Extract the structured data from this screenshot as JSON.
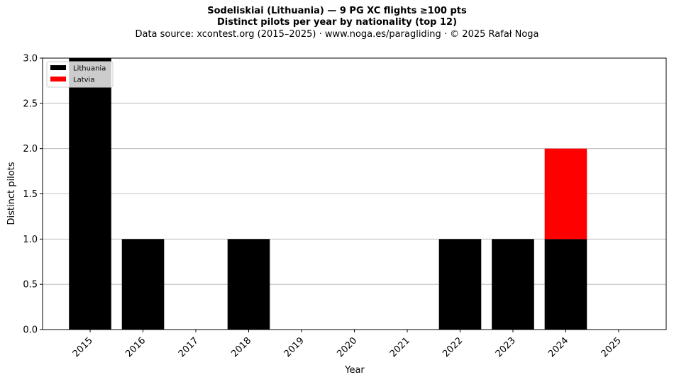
{
  "chart_data": {
    "type": "bar",
    "stacked": true,
    "title": "Sodeliskiai (Lithuania)  —  9 PG XC flights ≥100 pts",
    "subtitle": "Distinct pilots per year by nationality (top 12)",
    "source_line": "Data source: xcontest.org (2015–2025)  ·  www.noga.es/paragliding  ·  © 2025 Rafał Noga",
    "xlabel": "Year",
    "ylabel": "Distinct pilots",
    "categories": [
      "2015",
      "2016",
      "2017",
      "2018",
      "2019",
      "2020",
      "2021",
      "2022",
      "2023",
      "2024",
      "2025"
    ],
    "series": [
      {
        "name": "Lithuania",
        "color": "#000000",
        "values": [
          3,
          1,
          0,
          1,
          0,
          0,
          0,
          1,
          1,
          1,
          0
        ]
      },
      {
        "name": "Latvia",
        "color": "#ff0000",
        "values": [
          0,
          0,
          0,
          0,
          0,
          0,
          0,
          0,
          0,
          1,
          0
        ]
      }
    ],
    "ylim": [
      0,
      3
    ],
    "yticks": [
      "0.0",
      "0.5",
      "1.0",
      "1.5",
      "2.0",
      "2.5",
      "3.0"
    ],
    "grid": "y",
    "legend_position": "top-left"
  }
}
